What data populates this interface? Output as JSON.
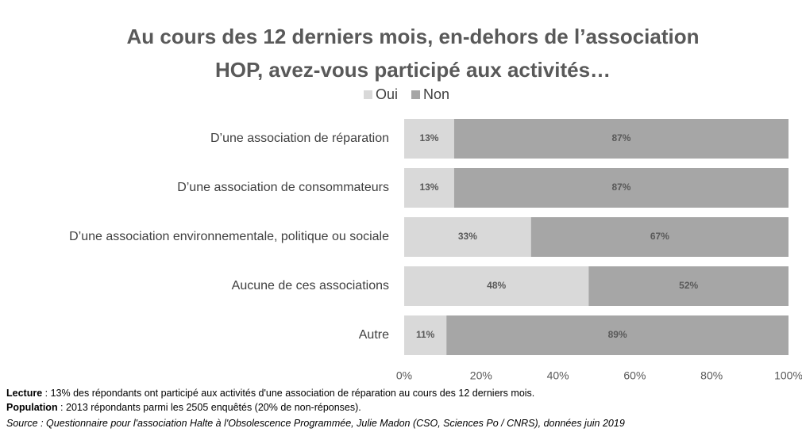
{
  "chart_data": {
    "type": "stacked_barh",
    "title": [
      "Au cours des 12 derniers mois, en-dehors de l’association",
      "HOP, avez-vous participé aux activités…"
    ],
    "categories": [
      "D’une association de réparation",
      "D’une association de consommateurs",
      "D’une association environnementale, politique ou sociale",
      "Aucune de ces associations",
      "Autre"
    ],
    "series": [
      {
        "name": "Oui",
        "color": "#d9d9d9",
        "values": [
          13,
          13,
          33,
          48,
          11
        ],
        "value_labels": [
          "13%",
          "13%",
          "33%",
          "48%",
          "11%"
        ]
      },
      {
        "name": "Non",
        "color": "#a6a6a6",
        "values": [
          87,
          87,
          67,
          52,
          89
        ],
        "value_labels": [
          "87%",
          "87%",
          "67%",
          "52%",
          "89%"
        ]
      }
    ],
    "xlim": [
      0,
      100
    ],
    "xticks": [
      {
        "value": 0,
        "label": "0%"
      },
      {
        "value": 20,
        "label": "20%"
      },
      {
        "value": 40,
        "label": "40%"
      },
      {
        "value": 60,
        "label": "60%"
      },
      {
        "value": 80,
        "label": "80%"
      },
      {
        "value": 100,
        "label": "100%"
      }
    ],
    "legend": "top",
    "notes": [
      {
        "label": "Lecture",
        "text": " : 13% des répondants ont participé aux activités d'une association de réparation au cours des 12 derniers mois."
      },
      {
        "label": "Population",
        "text": " : 2013 répondants parmi les 2505 enquêtés (20% de non-réponses)."
      },
      {
        "label": "Source",
        "text": " : Questionnaire pour l'association Halte à l'Obsolescence Programmée, Julie Madon (CSO, Sciences Po / CNRS), données juin 2019"
      }
    ]
  }
}
